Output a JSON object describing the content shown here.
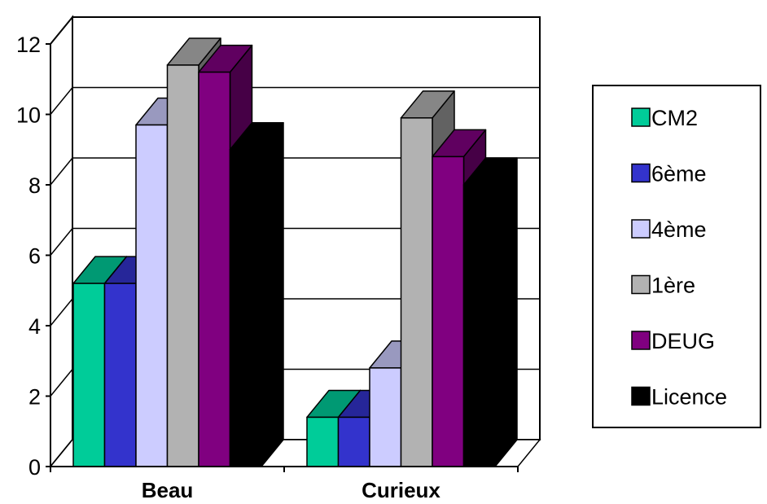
{
  "chart_data": {
    "type": "bar",
    "categories": [
      "Beau",
      "Curieux"
    ],
    "series": [
      {
        "name": "CM2",
        "values": [
          5.2,
          1.4
        ],
        "color": "#00CC99"
      },
      {
        "name": "6ème",
        "values": [
          5.2,
          1.4
        ],
        "color": "#3333CC"
      },
      {
        "name": "4ème",
        "values": [
          9.7,
          2.8
        ],
        "color": "#CCCCFF"
      },
      {
        "name": "1ère",
        "values": [
          11.4,
          9.9
        ],
        "color": "#B2B2B2"
      },
      {
        "name": "DEUG",
        "values": [
          11.2,
          8.8
        ],
        "color": "#800080"
      },
      {
        "name": "Licence",
        "values": [
          9.0,
          8.0
        ],
        "color": "#000000"
      }
    ],
    "ylim": [
      0,
      12
    ],
    "yticks": [
      "0",
      "2",
      "4",
      "6",
      "8",
      "10",
      "12"
    ],
    "grid": true,
    "three_d": true,
    "legend_position": "right"
  }
}
